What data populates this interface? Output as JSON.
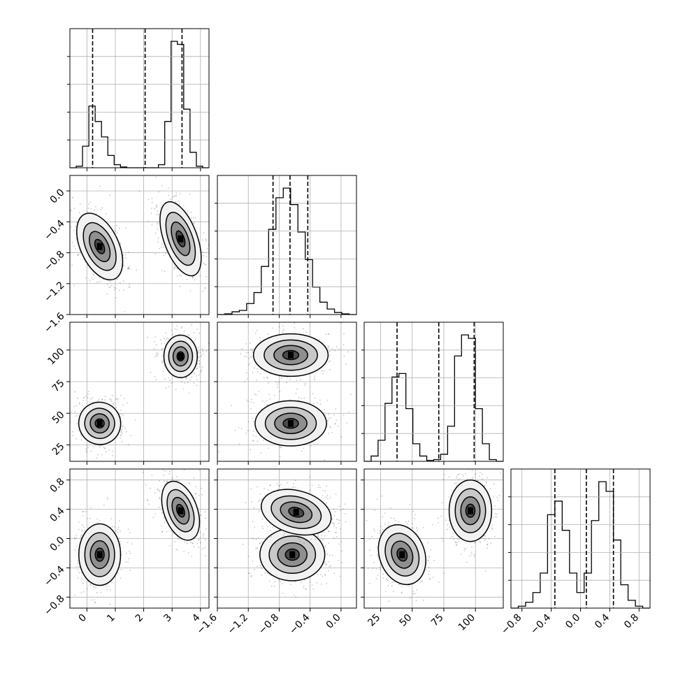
{
  "chart_data": {
    "type": "corner",
    "title": "",
    "parameters": [
      {
        "ticks": [
          "0",
          "1",
          "2",
          "3",
          "4"
        ],
        "tick_values": [
          0,
          1,
          2,
          3,
          4
        ],
        "range": [
          -0.6,
          4.3
        ],
        "quantiles": [
          0.2,
          2.05,
          3.35
        ]
      },
      {
        "ticks": [
          "0.0",
          "−0.4",
          "−0.8",
          "−1.2",
          "−1.6"
        ],
        "tick_values": [
          0.0,
          -0.4,
          -0.8,
          -1.2,
          -1.6
        ],
        "range": [
          -1.6,
          0.2
        ],
        "quantiles": [
          -0.88,
          -0.66,
          -0.43
        ]
      },
      {
        "ticks": [
          "25",
          "50",
          "75",
          "100"
        ],
        "tick_values": [
          25,
          50,
          75,
          100
        ],
        "range": [
          12,
          122
        ],
        "quantiles": [
          38,
          71,
          99
        ]
      },
      {
        "ticks": [
          "−0.8",
          "−0.4",
          "0.0",
          "0.4",
          "0.8"
        ],
        "tick_values": [
          -0.8,
          -0.4,
          0.0,
          0.4,
          0.8
        ],
        "range": [
          -0.95,
          0.95
        ],
        "quantiles": [
          -0.35,
          0.08,
          0.45
        ]
      }
    ],
    "histograms": [
      {
        "counts": [
          0,
          1,
          14,
          40,
          30,
          20,
          8,
          2,
          0.5,
          0,
          0,
          0,
          0,
          0,
          2,
          30,
          82,
          80,
          38,
          10,
          1,
          0
        ]
      },
      {
        "counts": [
          0,
          0.5,
          2,
          3,
          8,
          16,
          35,
          62,
          85,
          92,
          80,
          60,
          40,
          20,
          9,
          4,
          1.5,
          0.5,
          0
        ]
      },
      {
        "counts": [
          0,
          3,
          12,
          33,
          48,
          50,
          30,
          10,
          3,
          0.5,
          1,
          4,
          20,
          60,
          72,
          70,
          30,
          10,
          1,
          0
        ]
      },
      {
        "counts": [
          0,
          1,
          3,
          8,
          18,
          48,
          55,
          40,
          18,
          8,
          18,
          45,
          65,
          60,
          35,
          12,
          4,
          1,
          0
        ]
      }
    ],
    "panels": [
      {
        "row": 1,
        "col": 0,
        "blobs": [
          {
            "cx": 0.45,
            "cy": -0.72,
            "sx": 0.32,
            "sy": 0.22,
            "rot": -25,
            "w": 1
          },
          {
            "cx": 3.3,
            "cy": -0.62,
            "sx": 0.28,
            "sy": 0.24,
            "rot": -20,
            "w": 1
          }
        ]
      },
      {
        "row": 2,
        "col": 0,
        "blobs": [
          {
            "cx": 0.45,
            "cy": 42,
            "sx": 0.35,
            "sy": 8,
            "rot": -30,
            "w": 1
          },
          {
            "cx": 3.3,
            "cy": 95,
            "sx": 0.28,
            "sy": 8,
            "rot": 0,
            "w": 1
          }
        ]
      },
      {
        "row": 2,
        "col": 1,
        "blobs": [
          {
            "cx": -0.65,
            "cy": 42,
            "sx": 0.22,
            "sy": 8.5,
            "rot": 0,
            "w": 1
          },
          {
            "cx": -0.65,
            "cy": 96,
            "sx": 0.23,
            "sy": 8,
            "rot": 0,
            "w": 1
          }
        ]
      },
      {
        "row": 3,
        "col": 0,
        "blobs": [
          {
            "cx": 0.45,
            "cy": -0.22,
            "sx": 0.35,
            "sy": 0.2,
            "rot": 0,
            "w": 1
          },
          {
            "cx": 3.3,
            "cy": 0.38,
            "sx": 0.28,
            "sy": 0.2,
            "rot": -20,
            "w": 1
          }
        ]
      },
      {
        "row": 3,
        "col": 1,
        "blobs": [
          {
            "cx": -0.63,
            "cy": -0.22,
            "sx": 0.2,
            "sy": 0.17,
            "rot": 0,
            "w": 1
          },
          {
            "cx": -0.58,
            "cy": 0.36,
            "sx": 0.22,
            "sy": 0.14,
            "rot": 15,
            "w": 1
          }
        ]
      },
      {
        "row": 3,
        "col": 2,
        "blobs": [
          {
            "cx": 42,
            "cy": -0.22,
            "sx": 8.5,
            "sy": 0.2,
            "rot": -20,
            "w": 1
          },
          {
            "cx": 96,
            "cy": 0.38,
            "sx": 8,
            "sy": 0.2,
            "rot": 0,
            "w": 1
          }
        ]
      }
    ]
  }
}
